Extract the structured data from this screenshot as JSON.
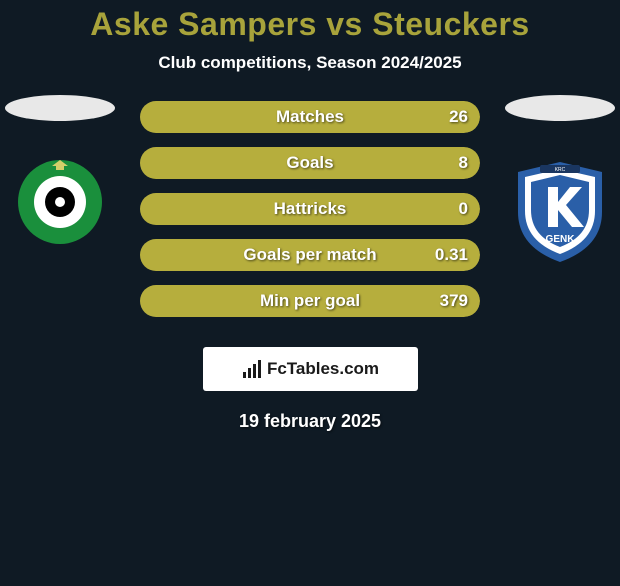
{
  "title": "Aske Sampers vs Steuckers",
  "subtitle": "Club competitions, Season 2024/2025",
  "title_fontsize": 32,
  "title_color": "#a8a33b",
  "subtitle_fontsize": 17,
  "subtitle_color": "#ffffff",
  "team_left": {
    "name": "Cercle Brugge",
    "badge_bg": "#1a8f3c",
    "badge_inner": "#ffffff",
    "badge_center": "#000000"
  },
  "team_right": {
    "name": "KRC Genk",
    "badge_bg": "#2a5fa8",
    "badge_inner": "#ffffff",
    "badge_text": "GENK"
  },
  "bars": [
    {
      "label": "Matches",
      "left_val": "",
      "right_val": "26",
      "left_pct": 3,
      "right_pct": 97
    },
    {
      "label": "Goals",
      "left_val": "",
      "right_val": "8",
      "left_pct": 3,
      "right_pct": 97
    },
    {
      "label": "Hattricks",
      "left_val": "",
      "right_val": "0",
      "left_pct": 3,
      "right_pct": 97
    },
    {
      "label": "Goals per match",
      "left_val": "",
      "right_val": "0.31",
      "left_pct": 3,
      "right_pct": 97
    },
    {
      "label": "Min per goal",
      "left_val": "",
      "right_val": "379",
      "left_pct": 3,
      "right_pct": 97
    }
  ],
  "bar_style": {
    "left_color": "#b6ae3d",
    "right_color": "#b6ae3d",
    "label_fontsize": 17,
    "val_fontsize": 17,
    "height": 32
  },
  "brand": {
    "text": "FcTables.com",
    "fontsize": 17
  },
  "date": "19 february 2025",
  "date_fontsize": 18
}
